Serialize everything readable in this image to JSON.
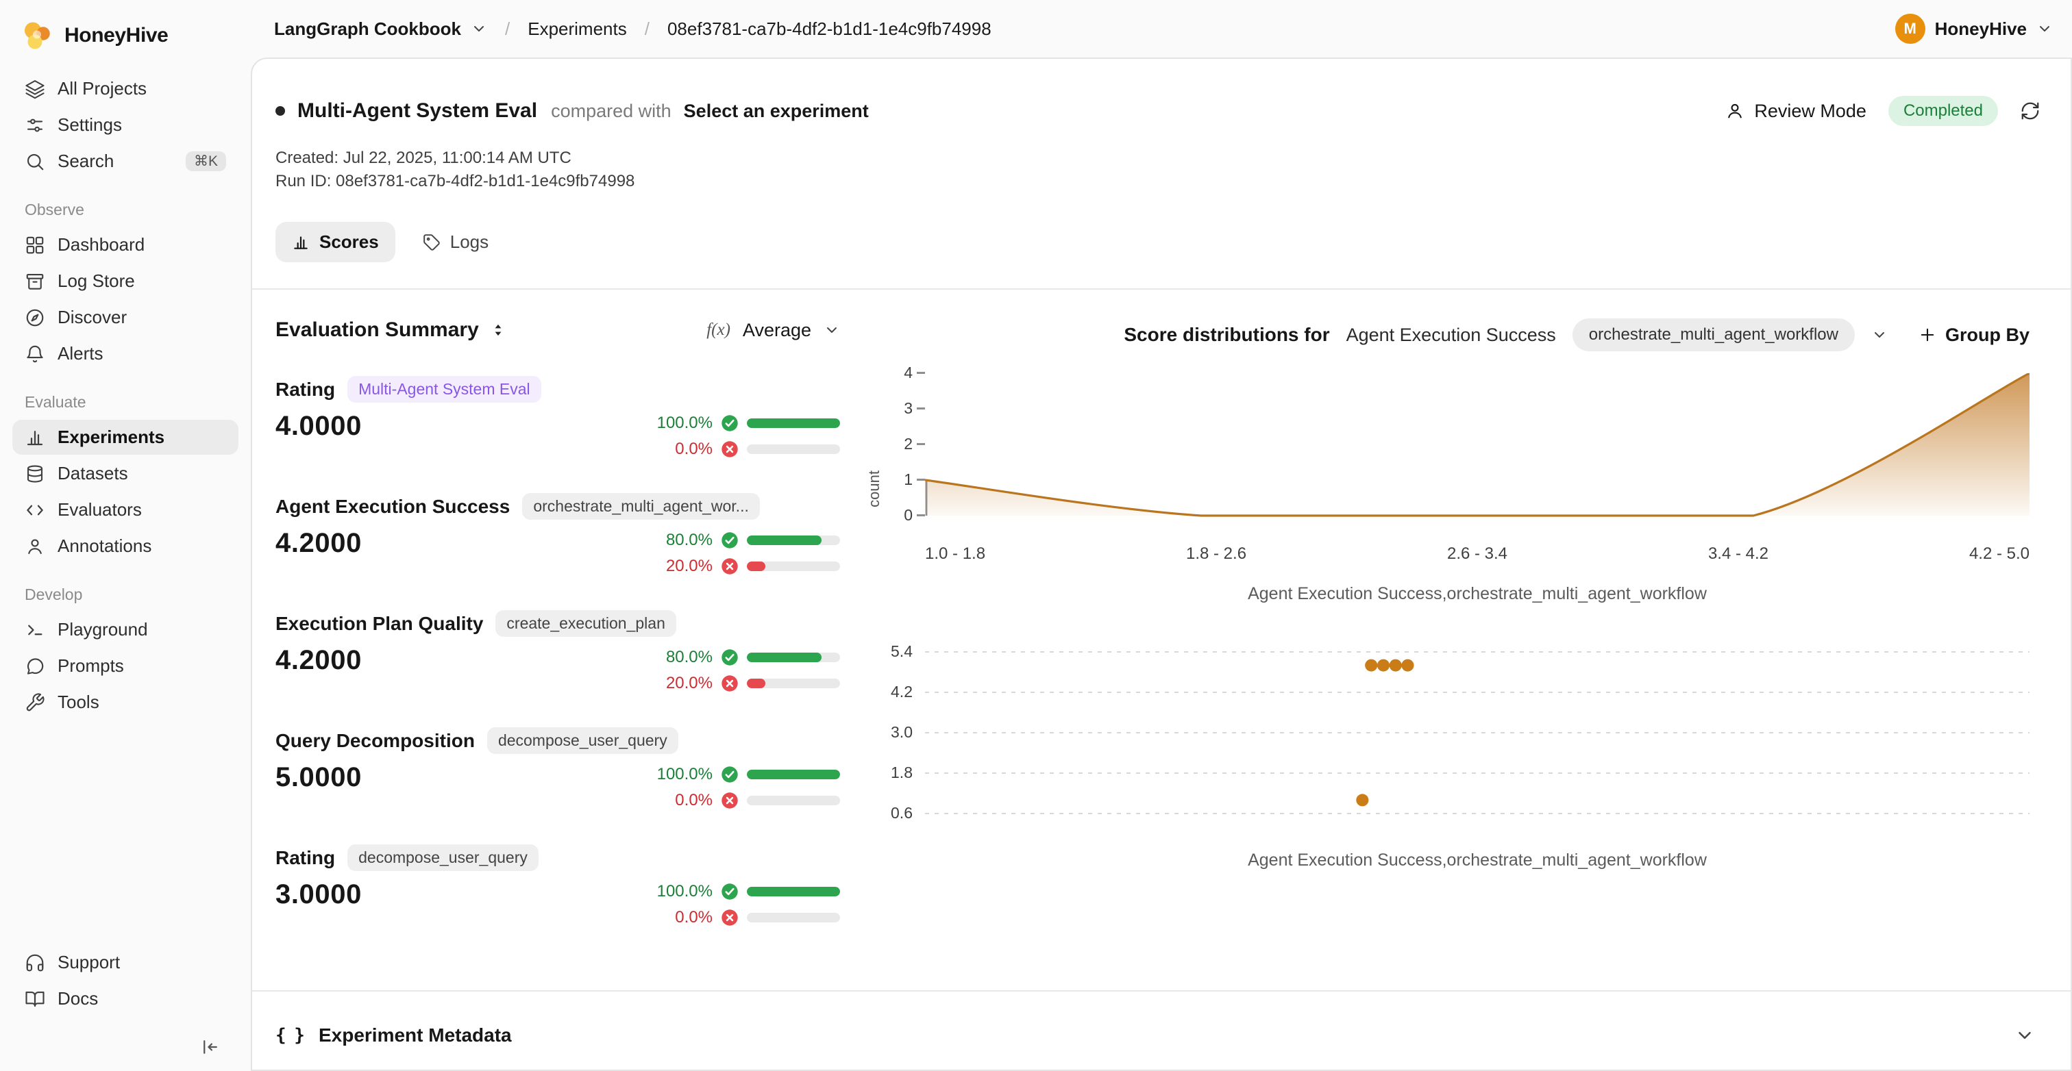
{
  "brand": {
    "name": "HoneyHive"
  },
  "colors": {
    "accent_green": "#2da44e",
    "accent_red": "#e5484d",
    "chart_orange": "#b9761f",
    "dot_orange": "#ca7d17",
    "status_green_bg": "#dcf3e4",
    "purple_pill": "#8957e5"
  },
  "topbar": {
    "project": "LangGraph Cookbook",
    "separator": "/",
    "section": "Experiments",
    "run_id": "08ef3781-ca7b-4df2-b1d1-1e4c9fb74998",
    "user_initial": "M",
    "user_name": "HoneyHive"
  },
  "sidebar": {
    "search_shortcut": "⌘K",
    "groups": [
      {
        "label": "",
        "items": [
          {
            "label": "All Projects"
          },
          {
            "label": "Settings"
          },
          {
            "label": "Search"
          }
        ]
      },
      {
        "label": "Observe",
        "items": [
          {
            "label": "Dashboard"
          },
          {
            "label": "Log Store"
          },
          {
            "label": "Discover"
          },
          {
            "label": "Alerts"
          }
        ]
      },
      {
        "label": "Evaluate",
        "items": [
          {
            "label": "Experiments"
          },
          {
            "label": "Datasets"
          },
          {
            "label": "Evaluators"
          },
          {
            "label": "Annotations"
          }
        ]
      },
      {
        "label": "Develop",
        "items": [
          {
            "label": "Playground"
          },
          {
            "label": "Prompts"
          },
          {
            "label": "Tools"
          }
        ]
      }
    ],
    "footer": [
      {
        "label": "Support"
      },
      {
        "label": "Docs"
      }
    ]
  },
  "run_header": {
    "title": "Multi-Agent System Eval",
    "compared_with": "compared with",
    "select_experiment": "Select an experiment",
    "review_mode": "Review Mode",
    "status": "Completed",
    "created_line": "Created: Jul 22, 2025, 11:00:14 AM UTC",
    "run_id_line": "Run ID: 08ef3781-ca7b-4df2-b1d1-1e4c9fb74998"
  },
  "tabs": {
    "scores": "Scores",
    "logs": "Logs"
  },
  "evaluation": {
    "title": "Evaluation Summary",
    "fx_label": "f(x)",
    "aggregation": "Average",
    "metrics": [
      {
        "name": "Rating",
        "tag": "Multi-Agent System Eval",
        "value": "4.0000",
        "pass_label": "100.0%",
        "fail_label": "0.0%",
        "pass_pct": 100,
        "fail_pct": 0
      },
      {
        "name": "Agent Execution Success",
        "tag": "orchestrate_multi_agent_wor...",
        "value": "4.2000",
        "pass_label": "80.0%",
        "fail_label": "20.0%",
        "pass_pct": 80,
        "fail_pct": 20
      },
      {
        "name": "Execution Plan Quality",
        "tag": "create_execution_plan",
        "value": "4.2000",
        "pass_label": "80.0%",
        "fail_label": "20.0%",
        "pass_pct": 80,
        "fail_pct": 20
      },
      {
        "name": "Query Decomposition",
        "tag": "decompose_user_query",
        "value": "5.0000",
        "pass_label": "100.0%",
        "fail_label": "0.0%",
        "pass_pct": 100,
        "fail_pct": 0
      },
      {
        "name": "Rating",
        "tag": "decompose_user_query",
        "value": "3.0000",
        "pass_label": "100.0%",
        "fail_label": "0.0%",
        "pass_pct": 100,
        "fail_pct": 0
      }
    ]
  },
  "distributions": {
    "title": "Score distributions for",
    "metric": "Agent Execution Success",
    "tag": "orchestrate_multi_agent_workflow",
    "group_by": "Group By"
  },
  "metadata": {
    "icon": "{ }",
    "title": "Experiment Metadata"
  },
  "chart_data": [
    {
      "type": "area",
      "title": "Agent Execution Success,orchestrate_multi_agent_workflow",
      "categories": [
        "1.0 - 1.8",
        "1.8 - 2.6",
        "2.6 - 3.4",
        "3.4 - 4.2",
        "4.2 - 5.0"
      ],
      "values": [
        1,
        0,
        0,
        0,
        4
      ],
      "ylabel": "count",
      "yticks": [
        0,
        1,
        2,
        3,
        4
      ],
      "ylim": [
        0,
        4
      ],
      "color": "#b9761f"
    },
    {
      "type": "scatter",
      "title": "Agent Execution Success,orchestrate_multi_agent_workflow",
      "yticks": [
        5.4,
        4.2,
        3.0,
        1.8,
        0.6
      ],
      "points": [
        {
          "x": 0.396,
          "y": 1.0
        },
        {
          "x": 0.404,
          "y": 5.0
        },
        {
          "x": 0.415,
          "y": 5.0
        },
        {
          "x": 0.426,
          "y": 5.0
        },
        {
          "x": 0.437,
          "y": 5.0
        }
      ],
      "color": "#ca7d17",
      "grid": "dashed-horizontal"
    }
  ]
}
